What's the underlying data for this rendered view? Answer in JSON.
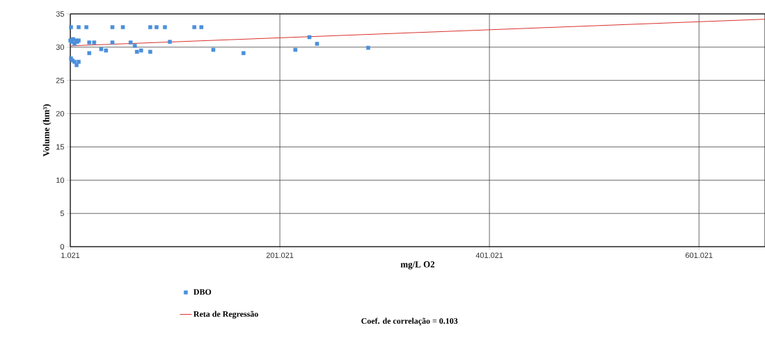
{
  "chart_data": {
    "type": "scatter",
    "xlabel": "mg/L O2",
    "ylabel": "Volume (hm³)",
    "xlim": [
      1.021,
      664
    ],
    "xticks": [
      1.021,
      201.021,
      401.021,
      601.021
    ],
    "ylim": [
      0,
      35
    ],
    "yticks": [
      0,
      5,
      10,
      15,
      20,
      25,
      30,
      35
    ],
    "grid": true,
    "legend": "bottom",
    "marker": "square",
    "annotations": [
      "Coef. de correlação = 0.103"
    ],
    "series": [
      {
        "name": "DBO",
        "color": "#4a8fdc",
        "x": [
          1.7,
          9.0,
          16.4,
          41.2,
          51.2,
          77.3,
          83.3,
          91.3,
          119.4,
          126.1,
          1.1,
          2.4,
          3.7,
          5.0,
          6.4,
          7.7,
          9.0,
          1.7,
          3.0,
          5.0,
          7.0,
          9.0,
          19.1,
          23.8,
          19.1,
          30.5,
          35.1,
          41.2,
          58.6,
          62.6,
          64.6,
          68.6,
          77.3,
          96.0,
          137.5,
          166.3,
          215.8,
          229.2,
          236.5,
          285.3
        ],
        "values": [
          33,
          33,
          33,
          33,
          33,
          33,
          33,
          33,
          33,
          33,
          31,
          30.8,
          31.2,
          30.5,
          31,
          30.8,
          31,
          28.3,
          28,
          27.8,
          27.3,
          27.8,
          30.7,
          30.7,
          29.1,
          29.7,
          29.5,
          30.7,
          30.7,
          30.2,
          29.3,
          29.5,
          29.3,
          30.8,
          29.6,
          29.1,
          29.6,
          31.5,
          30.5,
          29.9
        ]
      },
      {
        "name": "Reta de Regressão",
        "type": "line",
        "color": "#d9302a",
        "marker": "none",
        "line_style": "solid",
        "x": [
          1.021,
          664
        ],
        "values": [
          30.2,
          34.2
        ]
      }
    ]
  }
}
